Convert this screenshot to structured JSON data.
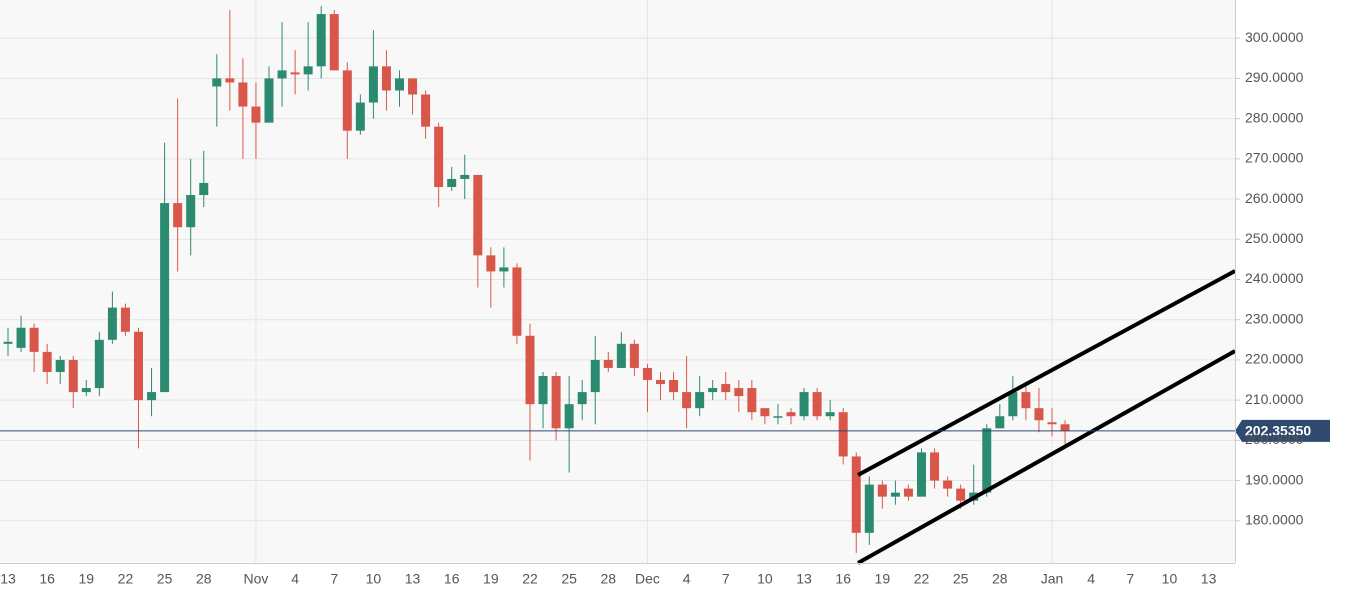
{
  "chart_data": {
    "type": "candlestick",
    "categories": [
      "13",
      null,
      null,
      "16",
      null,
      null,
      "19",
      null,
      null,
      "22",
      null,
      null,
      "25",
      null,
      null,
      "28",
      null,
      null,
      null,
      "Nov",
      null,
      null,
      "4",
      null,
      null,
      "7",
      null,
      null,
      "10",
      null,
      null,
      "13",
      null,
      null,
      "16",
      null,
      null,
      "19",
      null,
      null,
      "22",
      null,
      null,
      "25",
      null,
      null,
      "28",
      null,
      null,
      "Dec",
      null,
      null,
      "4",
      null,
      null,
      "7",
      null,
      null,
      "10",
      null,
      null,
      "13",
      null,
      null,
      "16",
      null,
      null,
      "19",
      null,
      null,
      "22",
      null,
      null,
      "25",
      null,
      null,
      "28",
      null,
      null,
      null,
      "Jan",
      null,
      null,
      "4",
      null,
      null,
      "7",
      null,
      null,
      "10",
      null,
      null,
      "13"
    ],
    "open": [
      224,
      223,
      228,
      222,
      217,
      220,
      212,
      213,
      225,
      233,
      227,
      210,
      212,
      259,
      253,
      261,
      288,
      290,
      289,
      283,
      279,
      290,
      291.5,
      291,
      293,
      306,
      292,
      277,
      284,
      293,
      287,
      290,
      286,
      278,
      263,
      265,
      266,
      246,
      242,
      243,
      226,
      209,
      216,
      203,
      209,
      212,
      220,
      218,
      224,
      218,
      215,
      215,
      212,
      208,
      212,
      214,
      213,
      213,
      208,
      206,
      207,
      206,
      212,
      206,
      207,
      196,
      177,
      189,
      186,
      188,
      186,
      197,
      190,
      188,
      185,
      187,
      203,
      206,
      212,
      208,
      204.5,
      204,
      null,
      null,
      null,
      null,
      null,
      null,
      null,
      null,
      null,
      null,
      null
    ],
    "high": [
      228,
      231,
      229,
      224,
      221,
      221,
      215,
      227,
      237,
      234,
      228,
      218,
      274,
      285,
      270,
      272,
      296,
      307,
      295,
      289,
      293,
      304,
      297,
      304,
      308,
      307,
      294,
      286,
      302,
      297,
      292,
      290,
      287,
      279,
      268,
      271,
      266,
      248,
      248,
      244,
      229,
      217,
      217,
      216,
      215,
      226,
      222,
      227,
      225,
      219,
      217,
      217,
      221,
      216,
      215,
      217,
      215,
      215,
      208,
      209,
      208,
      213,
      213,
      210,
      208,
      197,
      191,
      190,
      190,
      189,
      198,
      198,
      191,
      189,
      194,
      204,
      209,
      216,
      214,
      213,
      208,
      205,
      null,
      null,
      null,
      null,
      null,
      null,
      null,
      null,
      null,
      null,
      null
    ],
    "low": [
      221,
      222,
      217,
      214,
      214,
      208,
      211,
      211,
      224,
      226,
      198,
      206,
      212,
      242,
      246,
      258,
      278,
      282,
      270,
      270,
      279,
      283,
      286,
      287,
      290,
      292,
      270,
      276,
      280,
      282,
      283,
      281,
      275,
      258,
      262,
      260,
      238,
      233,
      238,
      224,
      195,
      203,
      200,
      192,
      205,
      204,
      217,
      218,
      216,
      207,
      210,
      210,
      203,
      206,
      210,
      210,
      207,
      205,
      204,
      204,
      204,
      205,
      205,
      205,
      194,
      172,
      174,
      183,
      184,
      185,
      186,
      188,
      186,
      183,
      184,
      186,
      203,
      205,
      205,
      202,
      201,
      199,
      null,
      null,
      null,
      null,
      null,
      null,
      null,
      null,
      null,
      null,
      null
    ],
    "close": [
      224.5,
      228,
      222,
      217,
      220,
      212,
      213,
      225,
      233,
      227,
      210,
      212,
      259,
      253,
      261,
      264,
      290,
      289,
      283,
      279,
      290,
      292,
      291,
      293,
      306,
      292,
      277,
      284,
      293,
      287,
      290,
      286,
      278,
      263,
      265,
      266,
      246,
      242,
      243,
      226,
      209,
      216,
      203,
      209,
      212,
      220,
      218,
      224,
      218,
      215,
      214,
      212,
      208,
      212,
      213,
      212,
      211,
      207,
      206,
      206,
      206,
      212,
      206,
      207,
      196,
      177,
      189,
      186,
      187,
      186,
      197,
      190,
      188,
      185,
      187,
      203,
      206,
      212,
      208,
      205,
      204,
      202.3535,
      null,
      null,
      null,
      null,
      null,
      null,
      null,
      null,
      null,
      null,
      null
    ],
    "up_color": "#2b8a70",
    "down_color": "#d9574a",
    "ylim": [
      169.5,
      309.5
    ],
    "yticks": [
      {
        "value": 180,
        "label": "180.0000"
      },
      {
        "value": 190,
        "label": "190.0000"
      },
      {
        "value": 200,
        "label": "200.0000"
      },
      {
        "value": 210,
        "label": "210.0000"
      },
      {
        "value": 220,
        "label": "220.0000"
      },
      {
        "value": 230,
        "label": "230.0000"
      },
      {
        "value": 240,
        "label": "240.0000"
      },
      {
        "value": 250,
        "label": "250.0000"
      },
      {
        "value": 260,
        "label": "260.0000"
      },
      {
        "value": 270,
        "label": "270.0000"
      },
      {
        "value": 280,
        "label": "280.0000"
      },
      {
        "value": 290,
        "label": "290.0000"
      },
      {
        "value": 300,
        "label": "300.0000"
      }
    ],
    "last_price": {
      "value": 202.3535,
      "label": "202.35350",
      "color": "#2f4a6e"
    },
    "grid": true
  }
}
